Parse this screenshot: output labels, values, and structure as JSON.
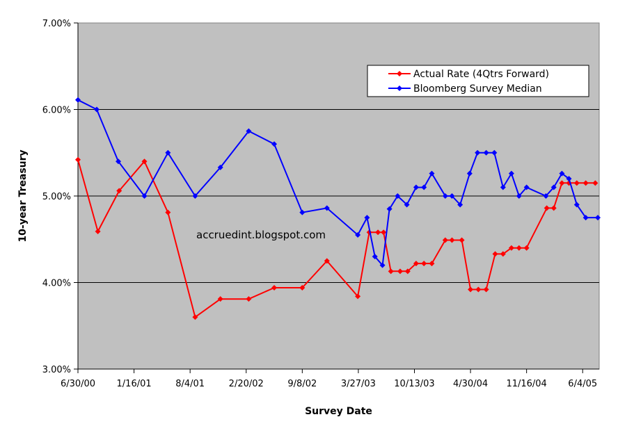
{
  "chart_data": {
    "type": "line",
    "xlabel": "Survey Date",
    "ylabel": "10-year Treasury",
    "ylim": [
      3.0,
      7.0
    ],
    "yticks": [
      "3.00%",
      "4.00%",
      "5.00%",
      "6.00%",
      "7.00%"
    ],
    "xlim": [
      "2000-06-30",
      "2005-08-02"
    ],
    "xticks": [
      {
        "date": "2000-06-30",
        "label": "6/30/00"
      },
      {
        "date": "2001-01-16",
        "label": "1/16/01"
      },
      {
        "date": "2001-08-04",
        "label": "8/4/01"
      },
      {
        "date": "2002-02-20",
        "label": "2/20/02"
      },
      {
        "date": "2002-09-08",
        "label": "9/8/02"
      },
      {
        "date": "2003-03-27",
        "label": "3/27/03"
      },
      {
        "date": "2003-10-13",
        "label": "10/13/03"
      },
      {
        "date": "2004-04-30",
        "label": "4/30/04"
      },
      {
        "date": "2004-11-16",
        "label": "11/16/04"
      },
      {
        "date": "2005-06-04",
        "label": "6/4/05"
      }
    ],
    "legend_position": "top-right",
    "grid": "horizontal",
    "annotation": "accruedint.blogspot.com",
    "series": [
      {
        "name": "Actual Rate (4Qtrs Forward)",
        "color": "#ff0000",
        "points": [
          [
            "2000-06-30",
            5.42
          ],
          [
            "2000-09-09",
            4.59
          ],
          [
            "2000-11-24",
            5.06
          ],
          [
            "2001-02-22",
            5.4
          ],
          [
            "2001-05-17",
            4.81
          ],
          [
            "2001-08-22",
            3.6
          ],
          [
            "2001-11-20",
            3.81
          ],
          [
            "2002-03-01",
            3.81
          ],
          [
            "2002-05-31",
            3.94
          ],
          [
            "2002-09-08",
            3.94
          ],
          [
            "2002-12-05",
            4.25
          ],
          [
            "2003-03-25",
            3.84
          ],
          [
            "2003-05-05",
            4.58
          ],
          [
            "2003-06-05",
            4.58
          ],
          [
            "2003-06-25",
            4.58
          ],
          [
            "2003-07-21",
            4.13
          ],
          [
            "2003-08-23",
            4.13
          ],
          [
            "2003-09-19",
            4.13
          ],
          [
            "2003-10-19",
            4.22
          ],
          [
            "2003-11-16",
            4.22
          ],
          [
            "2003-12-14",
            4.22
          ],
          [
            "2004-01-31",
            4.49
          ],
          [
            "2004-02-24",
            4.49
          ],
          [
            "2004-03-30",
            4.49
          ],
          [
            "2004-04-30",
            3.92
          ],
          [
            "2004-05-28",
            3.92
          ],
          [
            "2004-06-25",
            3.92
          ],
          [
            "2004-07-27",
            4.33
          ],
          [
            "2004-08-24",
            4.33
          ],
          [
            "2004-09-23",
            4.4
          ],
          [
            "2004-10-20",
            4.4
          ],
          [
            "2004-11-16",
            4.4
          ],
          [
            "2005-01-27",
            4.86
          ],
          [
            "2005-02-21",
            4.86
          ],
          [
            "2005-03-22",
            5.15
          ],
          [
            "2005-04-16",
            5.15
          ],
          [
            "2005-05-14",
            5.15
          ],
          [
            "2005-06-15",
            5.15
          ],
          [
            "2005-07-19",
            5.15
          ]
        ]
      },
      {
        "name": "Bloomberg Survey Median",
        "color": "#0000ff",
        "points": [
          [
            "2000-06-30",
            6.11
          ],
          [
            "2000-09-05",
            6.0
          ],
          [
            "2000-11-21",
            5.4
          ],
          [
            "2001-02-22",
            5.0
          ],
          [
            "2001-05-17",
            5.5
          ],
          [
            "2001-08-22",
            5.0
          ],
          [
            "2001-11-20",
            5.33
          ],
          [
            "2002-03-01",
            5.75
          ],
          [
            "2002-05-31",
            5.6
          ],
          [
            "2002-09-08",
            4.81
          ],
          [
            "2002-12-05",
            4.86
          ],
          [
            "2003-03-25",
            4.55
          ],
          [
            "2003-04-27",
            4.75
          ],
          [
            "2003-05-25",
            4.3
          ],
          [
            "2003-06-21",
            4.2
          ],
          [
            "2003-07-16",
            4.85
          ],
          [
            "2003-08-14",
            5.0
          ],
          [
            "2003-09-16",
            4.9
          ],
          [
            "2003-10-19",
            5.1
          ],
          [
            "2003-11-16",
            5.1
          ],
          [
            "2003-12-14",
            5.26
          ],
          [
            "2004-01-31",
            5.0
          ],
          [
            "2004-02-24",
            5.0
          ],
          [
            "2004-03-24",
            4.9
          ],
          [
            "2004-04-27",
            5.26
          ],
          [
            "2004-05-25",
            5.5
          ],
          [
            "2004-06-25",
            5.5
          ],
          [
            "2004-07-24",
            5.5
          ],
          [
            "2004-08-24",
            5.1
          ],
          [
            "2004-09-23",
            5.26
          ],
          [
            "2004-10-20",
            5.0
          ],
          [
            "2004-11-16",
            5.1
          ],
          [
            "2005-01-24",
            5.0
          ],
          [
            "2005-02-21",
            5.1
          ],
          [
            "2005-03-22",
            5.26
          ],
          [
            "2005-04-16",
            5.2
          ],
          [
            "2005-05-14",
            4.9
          ],
          [
            "2005-06-15",
            4.75
          ],
          [
            "2005-07-28",
            4.75
          ]
        ]
      }
    ]
  }
}
